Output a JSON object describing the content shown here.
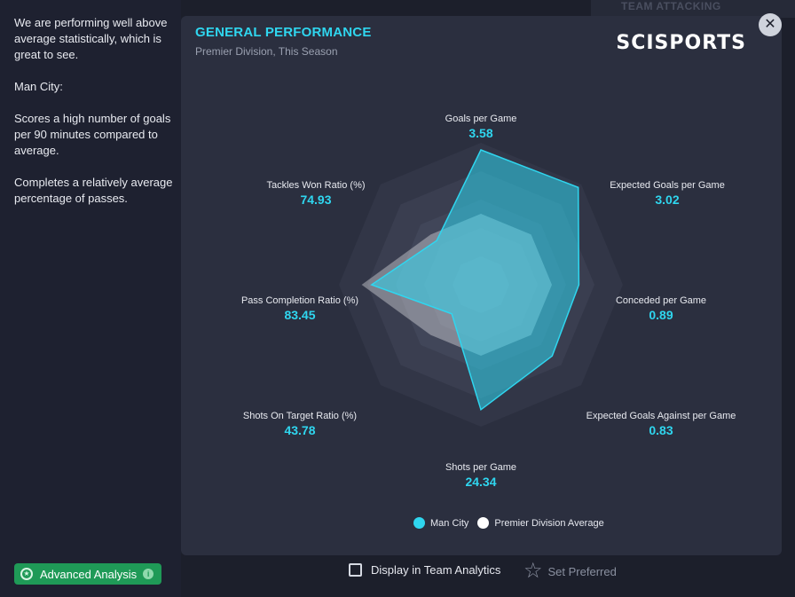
{
  "background": {
    "partial_title": "TEAM ATTACKING"
  },
  "sidebar": {
    "paragraphs": [
      "We are performing well above average statistically, which is great to see.",
      "Man City:",
      "Scores a high number of goals per 90 minutes compared to average.",
      "Completes a relatively average percentage of passes."
    ]
  },
  "card": {
    "title": "GENERAL PERFORMANCE",
    "subtitle": "Premier Division, This Season",
    "brand": "SCISPORTS"
  },
  "chart_data": {
    "type": "radar",
    "axes": [
      {
        "name": "Goals per Game",
        "value": "3.58"
      },
      {
        "name": "Expected Goals per Game",
        "value": "3.02"
      },
      {
        "name": "Conceded per Game",
        "value": "0.89"
      },
      {
        "name": "Expected Goals Against per Game",
        "value": "0.83"
      },
      {
        "name": "Shots per Game",
        "value": "24.34"
      },
      {
        "name": "Shots On Target Ratio (%)",
        "value": "43.78"
      },
      {
        "name": "Pass Completion Ratio (%)",
        "value": "83.45"
      },
      {
        "name": "Tackles Won Ratio (%)",
        "value": "74.93"
      }
    ],
    "series": [
      {
        "name": "Man City",
        "color": "#2fd6ef",
        "scores": [
          0.95,
          0.97,
          0.69,
          0.71,
          0.88,
          0.29,
          0.77,
          0.44
        ]
      },
      {
        "name": "Premier Division Average",
        "color": "#ffffff",
        "scores": [
          0.5,
          0.5,
          0.5,
          0.5,
          0.5,
          0.5,
          0.84,
          0.5
        ]
      }
    ],
    "rings": 5
  },
  "legend": {
    "items": [
      {
        "label": "Man City",
        "color": "#2fd6ef"
      },
      {
        "label": "Premier Division Average",
        "color": "#ffffff"
      }
    ]
  },
  "footer": {
    "advanced_analysis": "Advanced Analysis",
    "info_icon": "i",
    "display_in_team_analytics": "Display in Team Analytics",
    "set_preferred": "Set Preferred"
  },
  "icons": {
    "close": "close-icon",
    "star": "star-icon",
    "info": "info-icon",
    "analysis": "analysis-icon"
  }
}
